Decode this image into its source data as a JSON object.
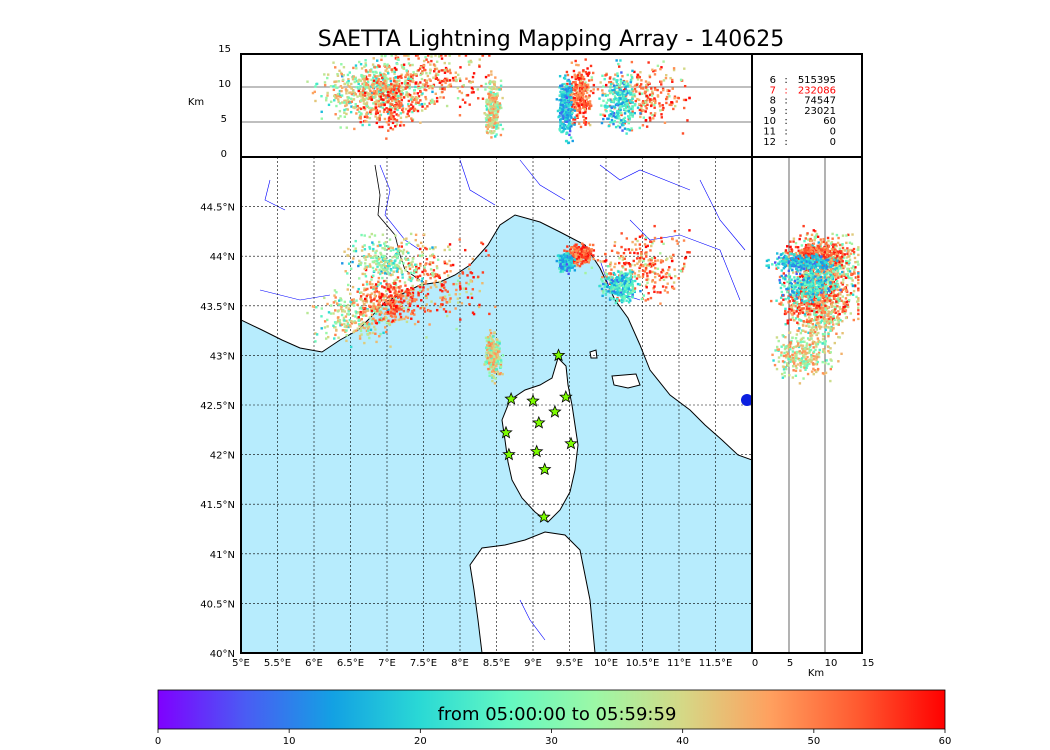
{
  "title": "SAETTA Lightning Mapping Array - 140625",
  "alt_axis": {
    "label": "Km",
    "ticks": [
      "0",
      "5",
      "10",
      "15"
    ]
  },
  "lon_ticks": [
    "5°E",
    "5.5°E",
    "6°E",
    "6.5°E",
    "7°E",
    "7.5°E",
    "8°E",
    "8.5°E",
    "9°E",
    "9.5°E",
    "10°E",
    "10.5°E",
    "11°E",
    "11.5°E"
  ],
  "lat_ticks": [
    "40°N",
    "40.5°N",
    "41°N",
    "41.5°N",
    "42°N",
    "42.5°N",
    "43°N",
    "43.5°N",
    "44°N",
    "44.5°N"
  ],
  "station_counts": [
    {
      "station": "6",
      "count": "515395",
      "highlight": false
    },
    {
      "station": "7",
      "count": "232086",
      "highlight": true
    },
    {
      "station": "8",
      "count": "74547",
      "highlight": false
    },
    {
      "station": "9",
      "count": "23021",
      "highlight": false
    },
    {
      "station": "10",
      "count": "60",
      "highlight": false
    },
    {
      "station": "11",
      "count": "0",
      "highlight": false
    },
    {
      "station": "12",
      "count": "0",
      "highlight": false
    }
  ],
  "colorbar": {
    "label": "from 05:00:00 to 05:59:59",
    "ticks": [
      "0",
      "10",
      "20",
      "30",
      "40",
      "50",
      "60"
    ],
    "range": [
      0,
      60
    ],
    "colormap": [
      "#7f00ff",
      "#4a5cf4",
      "#13a1e3",
      "#2ad9d5",
      "#63f8c2",
      "#9cf8a6",
      "#d5d886",
      "#ffa05f",
      "#ff5a30",
      "#ff0000"
    ]
  },
  "colors": {
    "sea": "#b7ecfd",
    "land": "#ffffff",
    "coast": "#000000",
    "rivers": "#0000ff",
    "station_marker": "#7cfc00",
    "highlight": "#ff0000"
  },
  "chart_data": {
    "type": "scatter",
    "xlim": [
      5,
      12
    ],
    "ylim": [
      40,
      45
    ],
    "alt_range_km": [
      0,
      15
    ],
    "grid": true,
    "time_range_minutes": [
      0,
      60
    ],
    "stations": [
      {
        "lon": 9.35,
        "lat": 43.0
      },
      {
        "lon": 8.7,
        "lat": 42.56
      },
      {
        "lon": 9.0,
        "lat": 42.54
      },
      {
        "lon": 9.45,
        "lat": 42.58
      },
      {
        "lon": 9.3,
        "lat": 42.43
      },
      {
        "lon": 9.08,
        "lat": 42.32
      },
      {
        "lon": 8.63,
        "lat": 42.22
      },
      {
        "lon": 9.52,
        "lat": 42.11
      },
      {
        "lon": 9.05,
        "lat": 42.03
      },
      {
        "lon": 8.67,
        "lat": 42.0
      },
      {
        "lon": 9.16,
        "lat": 41.85
      },
      {
        "lon": 9.15,
        "lat": 41.37
      }
    ],
    "lightning_clusters": [
      {
        "lon": 7.6,
        "lat": 43.75,
        "lon_spread": 0.35,
        "lat_spread": 0.2,
        "t_min": 30,
        "t_max": 60,
        "alt_km": 11
      },
      {
        "lon": 7.0,
        "lat": 43.95,
        "lon_spread": 0.25,
        "lat_spread": 0.12,
        "t_min": 10,
        "t_max": 45,
        "alt_km": 10
      },
      {
        "lon": 6.6,
        "lat": 43.4,
        "lon_spread": 0.25,
        "lat_spread": 0.12,
        "t_min": 15,
        "t_max": 50,
        "alt_km": 9
      },
      {
        "lon": 7.05,
        "lat": 43.55,
        "lon_spread": 0.2,
        "lat_spread": 0.1,
        "t_min": 40,
        "t_max": 60,
        "alt_km": 8
      },
      {
        "lon": 10.5,
        "lat": 43.9,
        "lon_spread": 0.3,
        "lat_spread": 0.15,
        "t_min": 30,
        "t_max": 60,
        "alt_km": 9
      },
      {
        "lon": 10.2,
        "lat": 43.7,
        "lon_spread": 0.12,
        "lat_spread": 0.08,
        "t_min": 5,
        "t_max": 30,
        "alt_km": 8
      },
      {
        "lon": 9.65,
        "lat": 44.02,
        "lon_spread": 0.08,
        "lat_spread": 0.05,
        "t_min": 40,
        "t_max": 60,
        "alt_km": 9
      },
      {
        "lon": 9.45,
        "lat": 43.93,
        "lon_spread": 0.05,
        "lat_spread": 0.04,
        "t_min": 5,
        "t_max": 25,
        "alt_km": 7
      },
      {
        "lon": 8.45,
        "lat": 43.0,
        "lon_spread": 0.05,
        "lat_spread": 0.1,
        "t_min": 20,
        "t_max": 50,
        "alt_km": 7
      }
    ]
  }
}
